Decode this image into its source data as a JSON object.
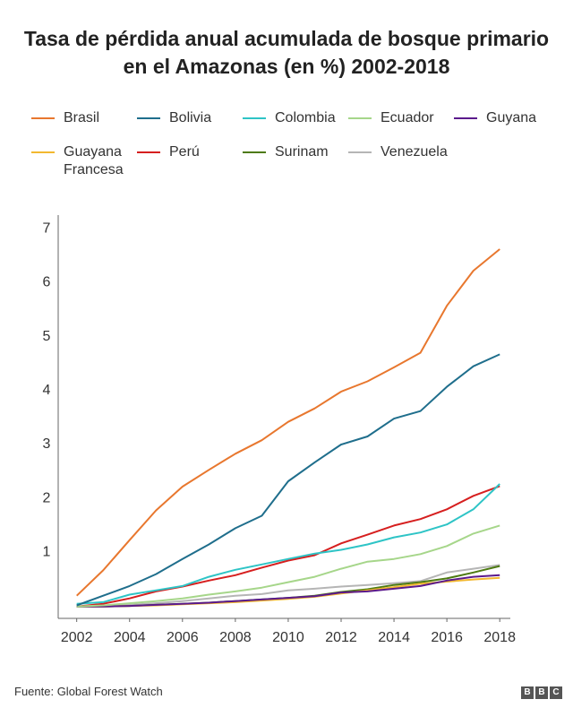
{
  "chart_data": {
    "type": "line",
    "title": "Tasa de pérdida anual acumulada de bosque primario en el Amazonas (en %) 2002-2018",
    "source": "Fuente: Global Forest Watch",
    "logo": "BBC",
    "x": [
      2002,
      2003,
      2004,
      2005,
      2006,
      2007,
      2008,
      2009,
      2010,
      2011,
      2012,
      2013,
      2014,
      2015,
      2016,
      2017,
      2018
    ],
    "xlim": [
      2001.3,
      2018.4
    ],
    "xticks": [
      2002,
      2004,
      2006,
      2008,
      2010,
      2012,
      2014,
      2016,
      2018
    ],
    "ylim": [
      -0.22,
      7.3
    ],
    "yticks": [
      1,
      2,
      3,
      4,
      5,
      6,
      7
    ],
    "series": [
      {
        "name": "Brasil",
        "color": "#e8772e",
        "values": [
          0.2,
          0.67,
          1.23,
          1.78,
          2.22,
          2.53,
          2.83,
          3.08,
          3.42,
          3.67,
          3.98,
          4.17,
          4.43,
          4.7,
          5.57,
          6.22,
          6.62
        ]
      },
      {
        "name": "Bolivia",
        "color": "#1f6e8c",
        "values": [
          0.02,
          0.2,
          0.38,
          0.6,
          0.88,
          1.15,
          1.45,
          1.68,
          2.32,
          2.67,
          3.0,
          3.15,
          3.48,
          3.62,
          4.07,
          4.45,
          4.67
        ]
      },
      {
        "name": "Colombia",
        "color": "#2ec4c6",
        "values": [
          0.05,
          0.08,
          0.22,
          0.3,
          0.38,
          0.55,
          0.68,
          0.78,
          0.88,
          0.98,
          1.05,
          1.15,
          1.28,
          1.37,
          1.52,
          1.8,
          2.27
        ]
      },
      {
        "name": "Ecuador",
        "color": "#a6d68a",
        "values": [
          0.0,
          0.02,
          0.06,
          0.1,
          0.15,
          0.22,
          0.28,
          0.35,
          0.45,
          0.55,
          0.7,
          0.83,
          0.88,
          0.97,
          1.12,
          1.35,
          1.5
        ]
      },
      {
        "name": "Guyana",
        "color": "#5b1a8c",
        "values": [
          0,
          0,
          0.01,
          0.03,
          0.05,
          0.07,
          0.1,
          0.13,
          0.16,
          0.19,
          0.26,
          0.28,
          0.33,
          0.38,
          0.48,
          0.55,
          0.58
        ]
      },
      {
        "name": "Guayana Francesa",
        "color": "#f2b830",
        "values": [
          0,
          0,
          0.01,
          0.02,
          0.04,
          0.06,
          0.08,
          0.11,
          0.14,
          0.18,
          0.24,
          0.3,
          0.36,
          0.42,
          0.46,
          0.5,
          0.53
        ]
      },
      {
        "name": "Perú",
        "color": "#d61f1f",
        "values": [
          0.0,
          0.05,
          0.15,
          0.28,
          0.37,
          0.48,
          0.58,
          0.72,
          0.85,
          0.95,
          1.17,
          1.33,
          1.5,
          1.62,
          1.8,
          2.05,
          2.23
        ]
      },
      {
        "name": "Surinam",
        "color": "#4d7a12",
        "values": [
          0,
          0,
          0.01,
          0.03,
          0.05,
          0.07,
          0.1,
          0.13,
          0.16,
          0.2,
          0.27,
          0.32,
          0.4,
          0.45,
          0.52,
          0.63,
          0.75
        ]
      },
      {
        "name": "Venezuela",
        "color": "#b5b5b5",
        "values": [
          0,
          0.01,
          0.03,
          0.06,
          0.1,
          0.15,
          0.2,
          0.23,
          0.3,
          0.33,
          0.37,
          0.4,
          0.43,
          0.47,
          0.63,
          0.7,
          0.77
        ]
      }
    ]
  }
}
